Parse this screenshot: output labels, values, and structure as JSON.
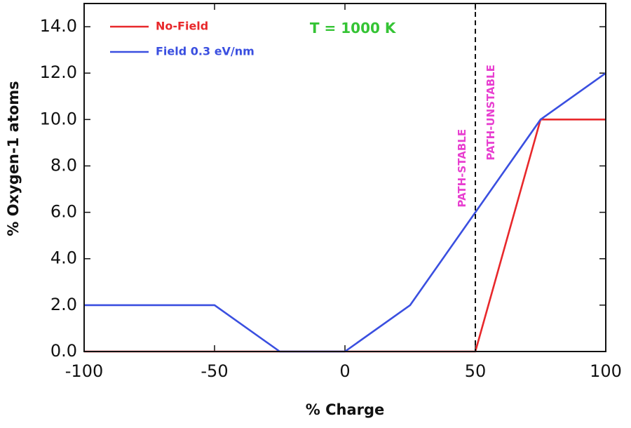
{
  "chart_data": {
    "type": "line",
    "title": "",
    "xlabel": "% Charge",
    "ylabel": "% Oxygen-1  atoms",
    "xlim": [
      -100,
      100
    ],
    "ylim": [
      0,
      15
    ],
    "xticks": [
      -100,
      -50,
      0,
      50,
      100
    ],
    "xtick_labels": [
      "-100",
      "-50",
      "0",
      "50",
      "100"
    ],
    "yticks": [
      0,
      2,
      4,
      6,
      8,
      10,
      12,
      14
    ],
    "ytick_labels": [
      "0.0",
      "2.0",
      "4.0",
      "6.0",
      "8.0",
      "10.0",
      "12.0",
      "14.0"
    ],
    "grid": false,
    "legend_position": "top-left",
    "series": [
      {
        "name": "No-Field",
        "color": "#e8282b",
        "x": [
          -100,
          -50,
          -25,
          0,
          25,
          50,
          75,
          100
        ],
        "y": [
          0,
          0,
          0,
          0,
          0,
          0,
          10,
          10
        ]
      },
      {
        "name": "Field 0.3 eV/nm",
        "color": "#3a4fe0",
        "x": [
          -100,
          -50,
          -25,
          0,
          25,
          50,
          75,
          100
        ],
        "y": [
          2,
          2,
          0,
          0,
          2,
          6,
          10,
          12
        ]
      }
    ],
    "annotations": [
      {
        "text": "T = 1000 K",
        "color": "#35c435",
        "x": 3,
        "y": 13.9
      },
      {
        "text": "PATH-STABLE",
        "color": "#e83fd0",
        "x": 45,
        "y": 7.9,
        "orientation": "vertical"
      },
      {
        "text": "PATH-UNSTABLE",
        "color": "#e83fd0",
        "x": 56,
        "y": 10.3,
        "orientation": "vertical"
      }
    ],
    "vline": {
      "x": 50,
      "style": "dashed",
      "color": "#111111"
    }
  }
}
